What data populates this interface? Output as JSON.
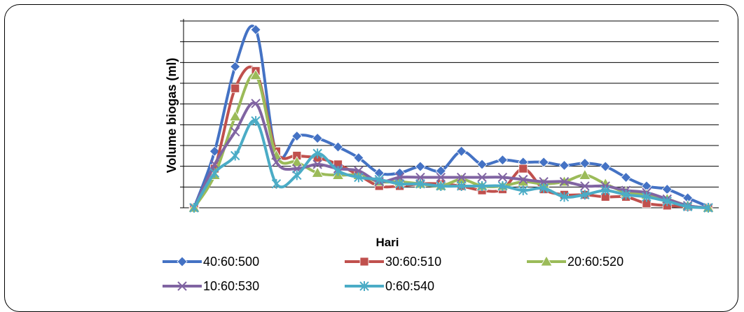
{
  "chart_data": {
    "type": "line",
    "title": "",
    "xlabel": "Hari",
    "ylabel": "Volume biogas (ml)",
    "ylim": [
      0,
      8.6
    ],
    "grid": true,
    "legend_position": "bottom",
    "x": [
      0,
      1,
      2,
      3,
      4,
      5,
      6,
      7,
      8,
      9,
      10,
      11,
      12,
      13,
      14,
      15,
      16,
      17,
      18,
      19,
      20,
      21,
      22,
      23,
      24,
      25
    ],
    "series": [
      {
        "name": "40:60:500",
        "color": "#4472C4",
        "marker": "diamond",
        "values": [
          0,
          2.6,
          6.5,
          8.2,
          2.5,
          3.3,
          3.2,
          2.8,
          2.3,
          1.6,
          1.6,
          1.9,
          1.7,
          2.6,
          2.0,
          2.2,
          2.1,
          2.1,
          1.95,
          2.05,
          1.9,
          1.4,
          1.0,
          0.85,
          0.45,
          0.05
        ]
      },
      {
        "name": "30:60:510",
        "color": "#C0504D",
        "marker": "square",
        "values": [
          0,
          1.8,
          5.5,
          6.3,
          2.6,
          2.4,
          2.3,
          2.0,
          1.5,
          1.0,
          1.0,
          1.1,
          1.1,
          1.0,
          0.8,
          0.85,
          1.8,
          0.85,
          0.6,
          0.6,
          0.5,
          0.5,
          0.2,
          0.1,
          0.05,
          0.0
        ]
      },
      {
        "name": "20:60:520",
        "color": "#9BBB59",
        "marker": "triangle",
        "values": [
          0,
          1.5,
          4.2,
          6.1,
          2.4,
          2.1,
          1.6,
          1.5,
          1.5,
          1.2,
          1.2,
          1.1,
          1.0,
          1.3,
          1.0,
          1.0,
          1.2,
          1.1,
          1.2,
          1.5,
          1.1,
          0.7,
          0.6,
          0.4,
          0.1,
          0.0
        ]
      },
      {
        "name": "10:60:530",
        "color": "#8064A2",
        "marker": "x",
        "values": [
          0,
          2.0,
          3.5,
          4.8,
          2.1,
          1.8,
          2.0,
          1.8,
          1.7,
          1.2,
          1.4,
          1.4,
          1.4,
          1.4,
          1.4,
          1.4,
          1.3,
          1.2,
          1.2,
          1.0,
          1.0,
          0.8,
          0.7,
          0.4,
          0.1,
          0.0
        ]
      },
      {
        "name": "0:60:540",
        "color": "#4BACC6",
        "marker": "asterisk",
        "values": [
          0,
          1.6,
          2.4,
          4.0,
          1.1,
          1.5,
          2.5,
          1.7,
          1.4,
          1.3,
          1.1,
          1.1,
          1.0,
          1.0,
          1.0,
          1.0,
          0.8,
          0.9,
          0.5,
          0.6,
          0.8,
          0.6,
          0.5,
          0.3,
          0.05,
          0.0
        ]
      }
    ]
  }
}
